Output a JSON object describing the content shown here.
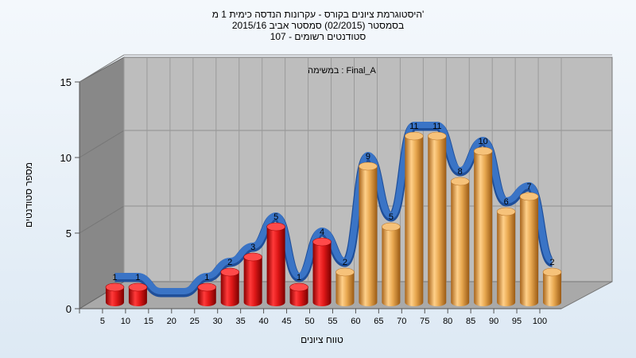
{
  "chart_data": {
    "type": "bar",
    "title_lines": [
      "היסטוגרמת ציונים בקורס - עקרונות הנדסה כימית 1 מ'",
      "בסמסטר  (02/2015)  סמסטר אביב 2015/16",
      "סטודנטים רשומים - 107"
    ],
    "annotation": "במשימה : Final_A",
    "xlabel": "טווח ציונים",
    "ylabel": "מספר סטודנטים",
    "ylim": [
      0,
      15
    ],
    "yticks": [
      0,
      5,
      10,
      15
    ],
    "grid": true,
    "categories": [
      "5",
      "10",
      "15",
      "20",
      "25",
      "30",
      "35",
      "40",
      "45",
      "50",
      "55",
      "60",
      "65",
      "70",
      "75",
      "80",
      "85",
      "90",
      "95",
      "100"
    ],
    "values": [
      1,
      1,
      0,
      0,
      1,
      2,
      3,
      5,
      1,
      4,
      2,
      9,
      5,
      11,
      11,
      8,
      10,
      6,
      7,
      2
    ],
    "bar_colors": {
      "fail": "#e02020",
      "pass": "#e8a850"
    },
    "pass_from_category": "55",
    "trend_color": "#3a74c6"
  }
}
